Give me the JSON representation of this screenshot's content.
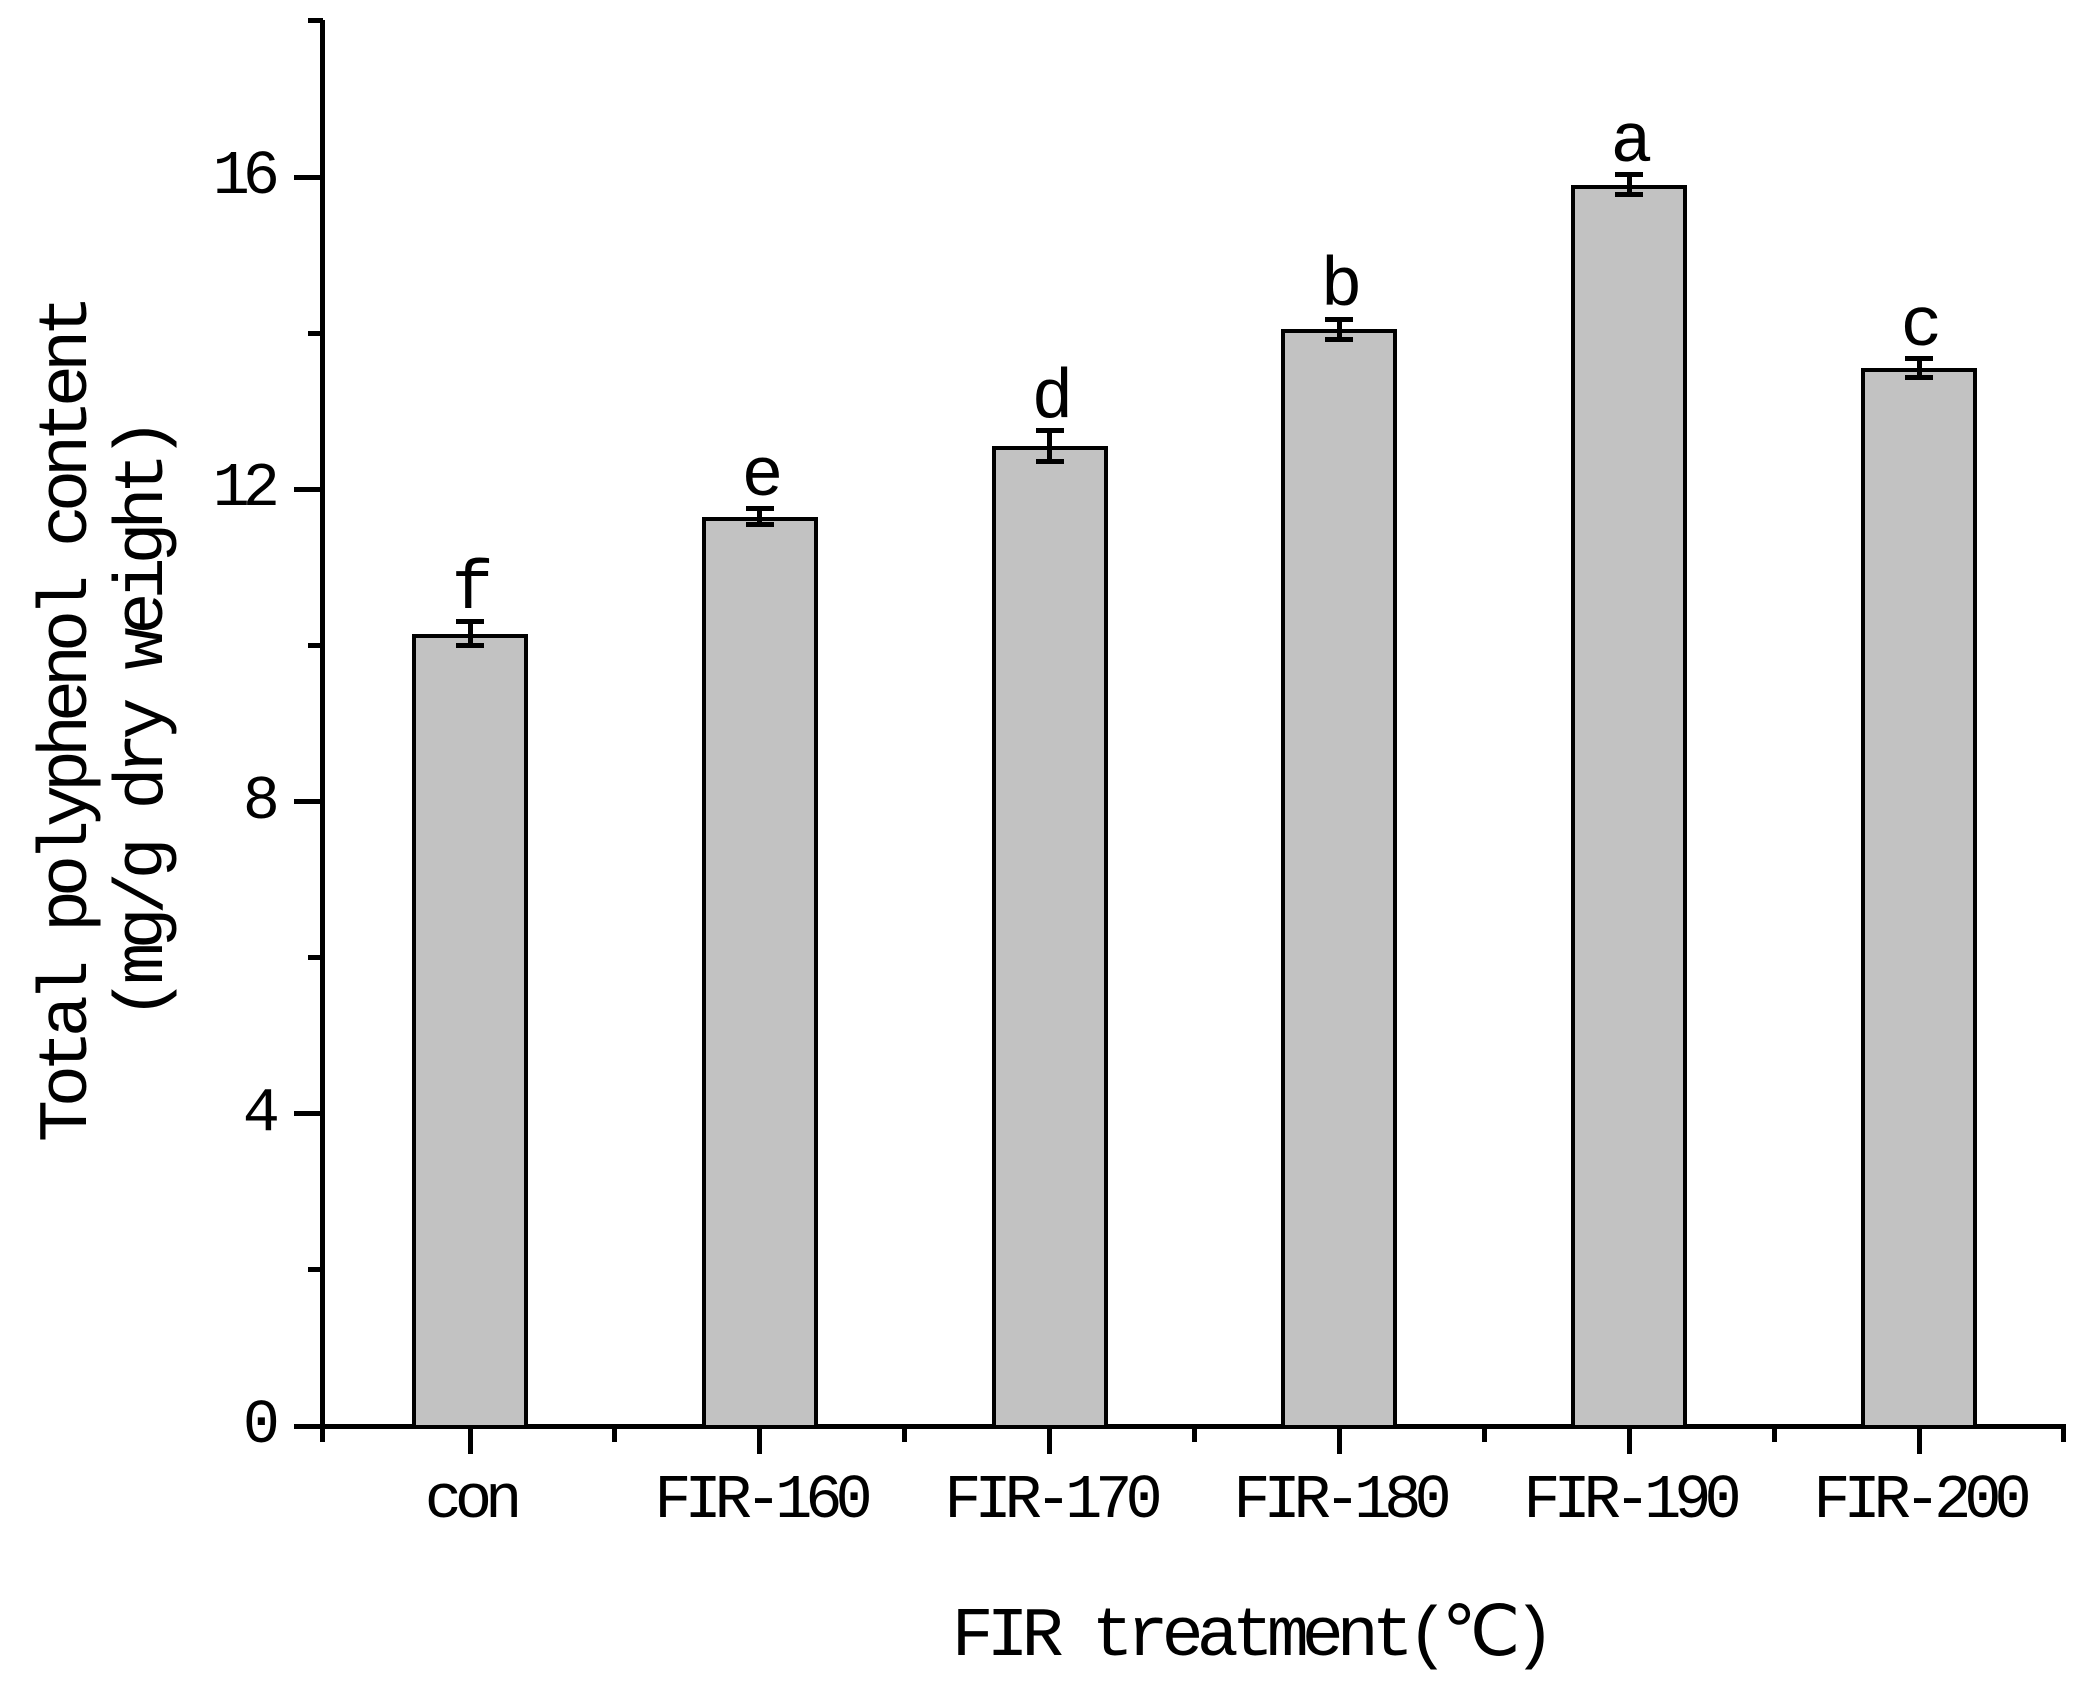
{
  "figure": {
    "xlabel": "FIR treatment(℃)",
    "ylabel_line1": "Total polyphenol content",
    "ylabel_line2": "(mg/g dry weight)"
  },
  "colors": {
    "background": "#ffffff",
    "bar_fill": "#c2c2c2",
    "bar_edge": "#000000",
    "axis": "#000000",
    "text": "#000000"
  },
  "chart_data": {
    "type": "bar",
    "categories": [
      "con",
      "FIR-160",
      "FIR-170",
      "FIR-180",
      "FIR-190",
      "FIR-200"
    ],
    "values": [
      10.15,
      11.65,
      12.55,
      14.05,
      15.9,
      13.55
    ],
    "errors": [
      0.15,
      0.1,
      0.2,
      0.13,
      0.13,
      0.12
    ],
    "sig_letters": [
      "f",
      "e",
      "d",
      "b",
      "a",
      "c"
    ],
    "title": "",
    "xlabel": "FIR treatment(℃)",
    "ylabel": "Total polyphenol content (mg/g dry weight)",
    "ylim": [
      0,
      18
    ],
    "yticks_major": [
      0,
      4,
      8,
      12,
      16
    ],
    "yticks_minor": [
      2,
      6,
      10,
      14,
      18
    ],
    "grid": false,
    "legend": false,
    "error_bar_caps": true,
    "bar_color": "#c2c2c2"
  }
}
